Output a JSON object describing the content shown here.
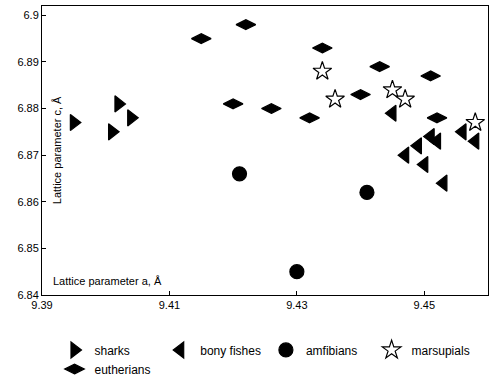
{
  "chart_data": {
    "type": "scatter",
    "x_label": "Lattice parameter a, Å",
    "y_label": "Lattice parameter c, Å",
    "xlim": [
      9.39,
      9.46
    ],
    "xticks": [
      9.39,
      9.41,
      9.43,
      9.45
    ],
    "ylim": [
      6.84,
      6.902
    ],
    "yticks": [
      6.84,
      6.85,
      6.86,
      6.87,
      6.88,
      6.89,
      6.9
    ],
    "grid": false,
    "legend": "bottom",
    "series": [
      {
        "name": "sharks",
        "color": "#000000",
        "marker": "triangle-right",
        "x": [
          9.395,
          9.401,
          9.402,
          9.404
        ],
        "values": [
          6.877,
          6.875,
          6.881,
          6.878
        ]
      },
      {
        "name": "bony fishes",
        "color": "#000000",
        "marker": "triangle-left",
        "x": [
          9.445,
          9.447,
          9.449,
          9.45,
          9.451,
          9.452,
          9.456,
          9.458,
          9.453
        ],
        "values": [
          6.879,
          6.87,
          6.872,
          6.868,
          6.874,
          6.873,
          6.875,
          6.873,
          6.864
        ]
      },
      {
        "name": "amfibians",
        "color": "#000000",
        "marker": "circle",
        "x": [
          9.421,
          9.441,
          9.43
        ],
        "values": [
          6.866,
          6.862,
          6.845
        ]
      },
      {
        "name": "marsupials",
        "color": "#ffffff",
        "marker": "star",
        "x": [
          9.434,
          9.436,
          9.445,
          9.447,
          9.458
        ],
        "values": [
          6.888,
          6.882,
          6.884,
          6.882,
          6.877
        ]
      },
      {
        "name": "eutherians",
        "color": "#000000",
        "marker": "diamond-wide",
        "x": [
          9.415,
          9.422,
          9.434,
          9.443,
          9.451,
          9.42,
          9.426,
          9.432,
          9.44,
          9.452
        ],
        "values": [
          6.895,
          6.898,
          6.893,
          6.889,
          6.887,
          6.881,
          6.88,
          6.878,
          6.883,
          6.878
        ]
      }
    ]
  }
}
